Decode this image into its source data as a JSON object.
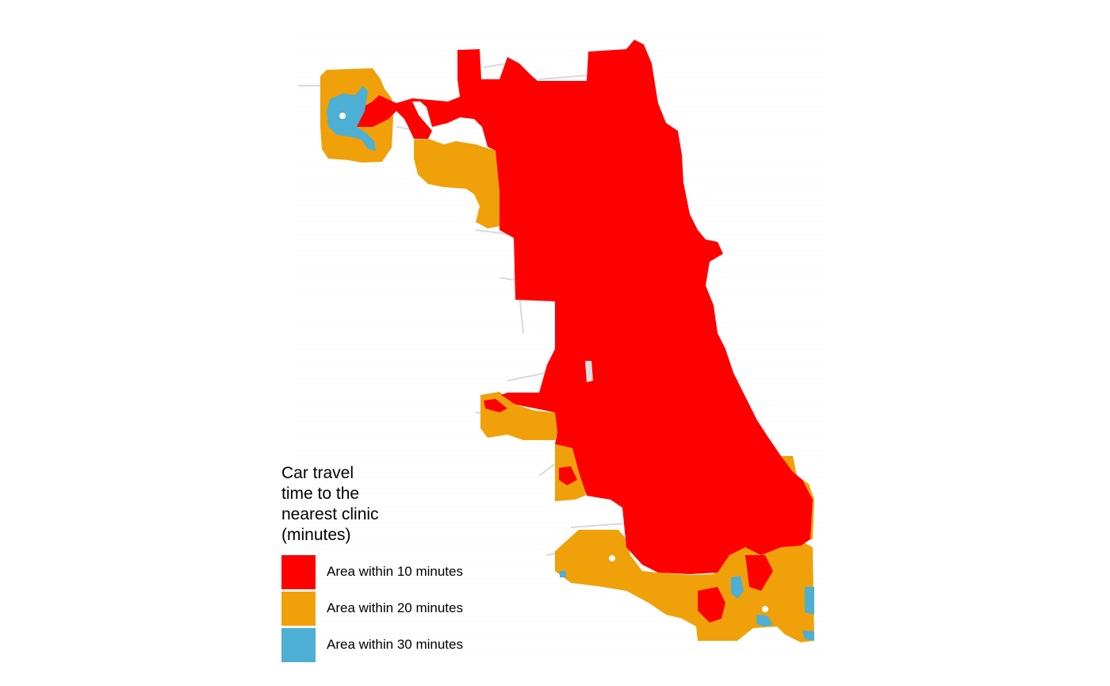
{
  "legend": {
    "title": "Car travel\ntime to the\nnearest clinic\n(minutes)",
    "items": [
      {
        "label": "Area within 10 minutes",
        "color": "#ff0000"
      },
      {
        "label": "Area within 20 minutes",
        "color": "#f0a10a"
      },
      {
        "label": "Area within 30 minutes",
        "color": "#4dafd3"
      }
    ]
  },
  "colors": {
    "road_network": "#d9d9d9",
    "background": "#ffffff"
  }
}
